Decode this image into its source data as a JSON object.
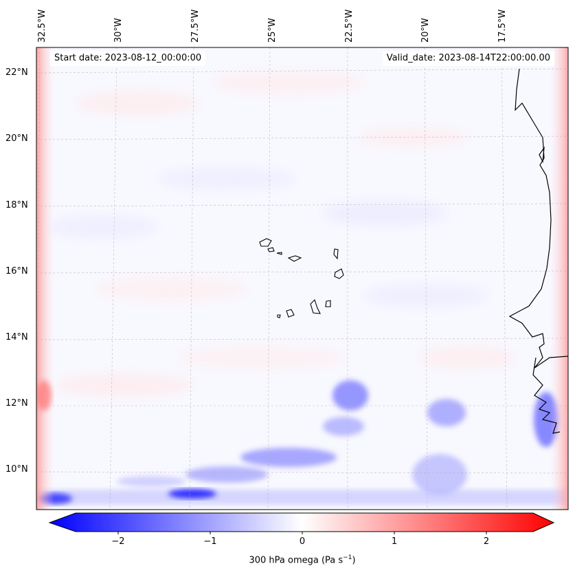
{
  "map": {
    "start_date": "Start date: 2023-08-12_00:00:00",
    "valid_date": "Valid_date: 2023-08-14T22:00:00.00",
    "lon_labels": [
      "32.5°W",
      "30°W",
      "27.5°W",
      "25°W",
      "22.5°W",
      "20°W",
      "17.5°W"
    ],
    "lat_labels": [
      "22°N",
      "20°N",
      "18°N",
      "16°N",
      "14°N",
      "12°N",
      "10°N"
    ],
    "colorbar": {
      "ticks": [
        "−2",
        "−1",
        "0",
        "1",
        "2"
      ],
      "label": "300 hPa omega (Pa s",
      "label_sup": "−1",
      "label_end": ")",
      "min_color": "#0000ff",
      "mid_color": "#ffffff",
      "max_color": "#ff0000"
    }
  }
}
